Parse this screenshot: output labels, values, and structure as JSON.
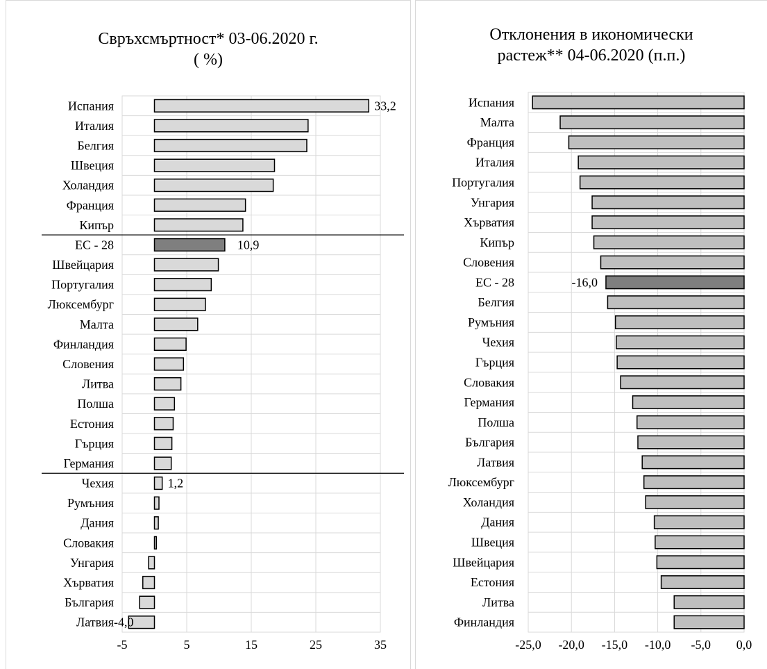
{
  "chart_data": [
    {
      "type": "bar",
      "orientation": "horizontal",
      "title_lines": [
        "Свръхсмъртност* 03-06.2020 г.",
        "( %)"
      ],
      "categories": [
        "Испания",
        "Италия",
        "Белгия",
        "Швеция",
        "Холандия",
        "Франция",
        "Кипър",
        "ЕС - 28",
        "Швейцария",
        "Португалия",
        "Люксембург",
        "Малта",
        "Финландия",
        "Словения",
        "Литва",
        "Полша",
        "Естония",
        "Гърция",
        "Германия",
        "Чехия",
        "Румъния",
        "Дания",
        "Словакия",
        "Унгария",
        "Хърватия",
        "България",
        "Латвия"
      ],
      "values": [
        33.2,
        23.8,
        23.6,
        18.6,
        18.4,
        14.1,
        13.7,
        10.9,
        9.9,
        8.8,
        7.9,
        6.7,
        4.9,
        4.5,
        4.1,
        3.1,
        2.9,
        2.7,
        2.6,
        1.2,
        0.7,
        0.6,
        0.3,
        -0.9,
        -1.8,
        -2.3,
        -4.0
      ],
      "highlight_category": "ЕС - 28",
      "colors": {
        "bar": "#d9d9d9",
        "highlight": "#7f7f7f",
        "stroke": "#000000",
        "grid": "#d9d9d9"
      },
      "data_labels": [
        {
          "category": "Испания",
          "text": "33,2"
        },
        {
          "category": "ЕС - 28",
          "text": "10,9"
        },
        {
          "category": "Чехия",
          "text": "1,2"
        },
        {
          "category": "Латвия",
          "text": "-4,0"
        }
      ],
      "separator_lines_after": [
        "Кипър",
        "Германия"
      ],
      "xticks": [
        "-5",
        "5",
        "15",
        "25",
        "35"
      ],
      "xtick_values": [
        -5,
        5,
        15,
        25,
        35
      ],
      "xlim": [
        -5,
        35
      ],
      "grid": true
    },
    {
      "type": "bar",
      "orientation": "horizontal",
      "title_lines": [
        "Отклонения в икономически",
        "растеж** 04-06.2020 (п.п.)"
      ],
      "categories": [
        "Испания",
        "Малта",
        "Франция",
        "Италия",
        "Португалия",
        "Унгария",
        "Хърватия",
        "Кипър",
        "Словения",
        "ЕС - 28",
        "Белгия",
        "Румъния",
        "Чехия",
        "Гърция",
        "Словакия",
        "Германия",
        "Полша",
        "България",
        "Латвия",
        "Люксембург",
        "Холандия",
        "Дания",
        "Швеция",
        "Швейцария",
        "Естония",
        "Литва",
        "Финландия"
      ],
      "values": [
        -24.5,
        -21.3,
        -20.3,
        -19.2,
        -19.0,
        -17.6,
        -17.6,
        -17.4,
        -16.6,
        -16.0,
        -15.8,
        -14.9,
        -14.8,
        -14.7,
        -14.3,
        -12.9,
        -12.4,
        -12.3,
        -11.8,
        -11.6,
        -11.4,
        -10.4,
        -10.3,
        -10.1,
        -9.6,
        -8.1,
        -8.1
      ],
      "highlight_category": "ЕС - 28",
      "colors": {
        "bar": "#bfbfbf",
        "highlight": "#7f7f7f",
        "stroke": "#000000",
        "grid": "#d9d9d9"
      },
      "data_labels": [
        {
          "category": "ЕС - 28",
          "text": "-16,0"
        }
      ],
      "xticks": [
        "-25,0",
        "-20,0",
        "-15,0",
        "-10,0",
        "-5,0",
        "0,0"
      ],
      "xtick_values": [
        -25,
        -20,
        -15,
        -10,
        -5,
        0
      ],
      "xlim": [
        -25,
        0
      ],
      "grid": true
    }
  ]
}
